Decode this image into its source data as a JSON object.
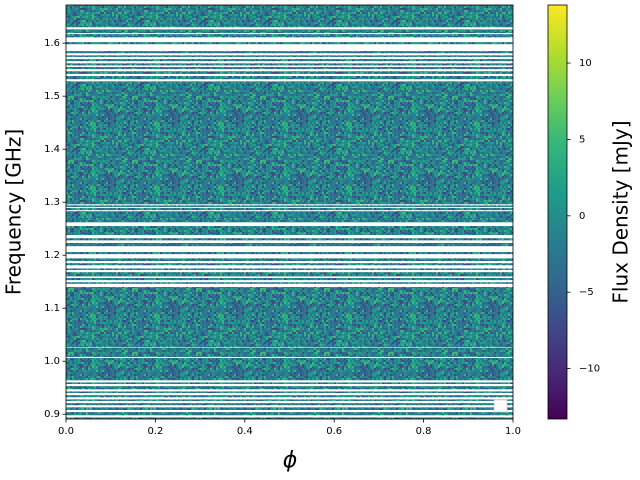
{
  "chart_data": {
    "type": "heatmap",
    "xlabel": "ϕ",
    "ylabel": "Frequency [GHz]",
    "colorbar_label": "Flux Density [mJy]",
    "colormap": "viridis",
    "xlim": [
      0,
      1
    ],
    "ylim": [
      0.891,
      1.672
    ],
    "xticks": [
      {
        "value": 0,
        "label": "0.0"
      },
      0.2,
      0.4,
      0.6,
      0.8,
      {
        "value": 1,
        "label": "1.0"
      }
    ],
    "yticks": [
      0.9,
      {
        "value": 1,
        "label": "1.0"
      },
      1.1,
      1.2,
      1.3,
      1.4,
      1.5,
      1.6
    ],
    "clim": [
      -13.3,
      13.8
    ],
    "cticks": [
      {
        "value": -10,
        "label": "−10"
      },
      {
        "value": -5,
        "label": "−5"
      },
      0,
      5,
      10
    ],
    "masked_bands": [
      [
        1.626,
        1.63
      ],
      [
        1.617,
        1.619
      ],
      [
        1.602,
        1.611
      ],
      [
        1.585,
        1.598
      ],
      [
        1.577,
        1.581
      ],
      [
        1.57,
        1.574
      ],
      [
        1.562,
        1.566
      ],
      [
        1.555,
        1.558
      ],
      [
        1.547,
        1.551
      ],
      [
        1.538,
        1.542
      ],
      [
        1.528,
        1.532
      ],
      [
        1.294,
        1.296
      ],
      [
        1.289,
        1.291
      ],
      [
        1.283,
        1.285
      ],
      [
        1.255,
        1.262
      ],
      [
        1.232,
        1.238
      ],
      [
        1.223,
        1.228
      ],
      [
        1.206,
        1.217
      ],
      [
        1.194,
        1.202
      ],
      [
        1.185,
        1.189
      ],
      [
        1.175,
        1.181
      ],
      [
        1.168,
        1.172
      ],
      [
        1.157,
        1.16
      ],
      [
        1.149,
        1.153
      ],
      [
        1.14,
        1.146
      ],
      [
        1.025,
        1.026
      ],
      [
        1.006,
        1.008
      ],
      [
        0.96,
        0.964
      ],
      [
        0.953,
        0.957
      ],
      [
        0.943,
        0.947
      ],
      [
        0.936,
        0.94
      ],
      [
        0.928,
        0.932
      ],
      [
        0.921,
        0.925
      ],
      [
        0.913,
        0.917
      ],
      [
        0.904,
        0.908
      ],
      [
        0.894,
        0.898
      ]
    ]
  }
}
